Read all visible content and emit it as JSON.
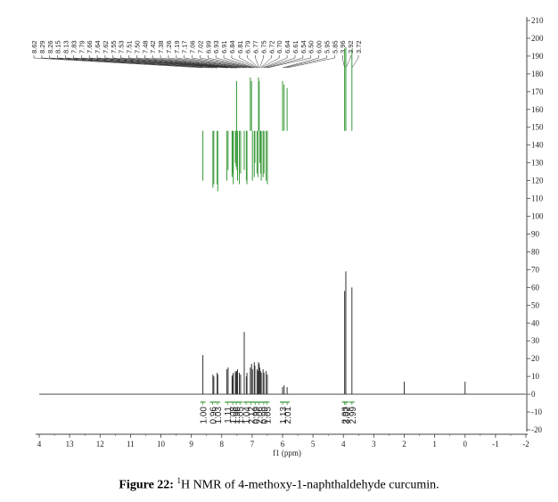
{
  "chart_data": {
    "type": "line",
    "title": "",
    "xlabel": "f1 (ppm)",
    "ylabel": "",
    "xlim": [
      14,
      -2
    ],
    "ylim": [
      -20,
      210
    ],
    "x_ticks": [
      "4",
      "13",
      "12",
      "11",
      "10",
      "9",
      "8",
      "7",
      "6",
      "5",
      "4",
      "3",
      "2",
      "1",
      "0",
      "-1",
      "-2"
    ],
    "y_ticks": [
      "210",
      "200",
      "190",
      "180",
      "170",
      "160",
      "150",
      "140",
      "130",
      "120",
      "110",
      "100",
      "90",
      "80",
      "70",
      "60",
      "50",
      "40",
      "30",
      "20",
      "10",
      "0",
      "-10",
      "-20"
    ],
    "peak_labels": [
      "8.62",
      "8.29",
      "8.26",
      "8.15",
      "8.13",
      "7.83",
      "7.79",
      "7.66",
      "7.64",
      "7.62",
      "7.55",
      "7.53",
      "7.51",
      "7.50",
      "7.48",
      "7.42",
      "7.38",
      "7.26",
      "7.19",
      "7.17",
      "7.06",
      "7.02",
      "6.99",
      "6.93",
      "6.91",
      "6.84",
      "6.81",
      "6.79",
      "6.77",
      "6.75",
      "6.72",
      "6.70",
      "6.64",
      "6.61",
      "6.54",
      "6.50",
      "6.00",
      "5.95",
      "5.85",
      "3.96",
      "3.92",
      "3.72"
    ],
    "integrals": [
      {
        "ppm": 8.62,
        "label": "1.00"
      },
      {
        "ppm": 8.3,
        "label": "0.96"
      },
      {
        "ppm": 8.14,
        "label": "1.03"
      },
      {
        "ppm": 7.81,
        "label": "1.11"
      },
      {
        "ppm": 7.64,
        "label": "1.08"
      },
      {
        "ppm": 7.52,
        "label": "1.96"
      },
      {
        "ppm": 7.4,
        "label": "1.05"
      },
      {
        "ppm": 7.2,
        "label": "1.04"
      },
      {
        "ppm": 7.04,
        "label": "2.12"
      },
      {
        "ppm": 6.9,
        "label": "0.99"
      },
      {
        "ppm": 6.77,
        "label": "2.06"
      },
      {
        "ppm": 6.62,
        "label": "0.99"
      },
      {
        "ppm": 6.52,
        "label": "1.05"
      },
      {
        "ppm": 6.0,
        "label": "1.13"
      },
      {
        "ppm": 5.85,
        "label": "2.01"
      },
      {
        "ppm": 3.96,
        "label": "2.93"
      },
      {
        "ppm": 3.92,
        "label": "3.02"
      },
      {
        "ppm": 3.72,
        "label": "2.99"
      }
    ],
    "peaks": [
      {
        "ppm": 8.62,
        "intensity": 22
      },
      {
        "ppm": 8.29,
        "intensity": 11
      },
      {
        "ppm": 8.26,
        "intensity": 10
      },
      {
        "ppm": 8.15,
        "intensity": 12
      },
      {
        "ppm": 8.13,
        "intensity": 11
      },
      {
        "ppm": 7.83,
        "intensity": 14
      },
      {
        "ppm": 7.79,
        "intensity": 15
      },
      {
        "ppm": 7.66,
        "intensity": 10
      },
      {
        "ppm": 7.64,
        "intensity": 11
      },
      {
        "ppm": 7.62,
        "intensity": 12
      },
      {
        "ppm": 7.55,
        "intensity": 13
      },
      {
        "ppm": 7.53,
        "intensity": 12
      },
      {
        "ppm": 7.51,
        "intensity": 13
      },
      {
        "ppm": 7.5,
        "intensity": 12
      },
      {
        "ppm": 7.48,
        "intensity": 14
      },
      {
        "ppm": 7.42,
        "intensity": 12
      },
      {
        "ppm": 7.38,
        "intensity": 11
      },
      {
        "ppm": 7.26,
        "intensity": 35
      },
      {
        "ppm": 7.19,
        "intensity": 10
      },
      {
        "ppm": 7.17,
        "intensity": 12
      },
      {
        "ppm": 7.06,
        "intensity": 15
      },
      {
        "ppm": 7.02,
        "intensity": 17
      },
      {
        "ppm": 6.99,
        "intensity": 14
      },
      {
        "ppm": 6.93,
        "intensity": 18
      },
      {
        "ppm": 6.91,
        "intensity": 16
      },
      {
        "ppm": 6.84,
        "intensity": 14
      },
      {
        "ppm": 6.81,
        "intensity": 13
      },
      {
        "ppm": 6.79,
        "intensity": 18
      },
      {
        "ppm": 6.77,
        "intensity": 17
      },
      {
        "ppm": 6.75,
        "intensity": 15
      },
      {
        "ppm": 6.72,
        "intensity": 13
      },
      {
        "ppm": 6.7,
        "intensity": 12
      },
      {
        "ppm": 6.64,
        "intensity": 14
      },
      {
        "ppm": 6.61,
        "intensity": 12
      },
      {
        "ppm": 6.54,
        "intensity": 13
      },
      {
        "ppm": 6.5,
        "intensity": 11
      },
      {
        "ppm": 6.0,
        "intensity": 4
      },
      {
        "ppm": 5.95,
        "intensity": 5
      },
      {
        "ppm": 5.85,
        "intensity": 4
      },
      {
        "ppm": 3.96,
        "intensity": 58
      },
      {
        "ppm": 3.92,
        "intensity": 69
      },
      {
        "ppm": 3.72,
        "intensity": 60
      },
      {
        "ppm": 2.0,
        "intensity": 7
      },
      {
        "ppm": 0.0,
        "intensity": 7
      }
    ],
    "grid": false,
    "colors": {
      "spectrum": "#333333",
      "annotation": "#3a9a3a",
      "axis": "#444444"
    }
  },
  "caption": {
    "label": "Figure 22:",
    "sup": "1",
    "text": "H NMR of 4-methoxy-1-naphthaldehyde curcumin."
  }
}
